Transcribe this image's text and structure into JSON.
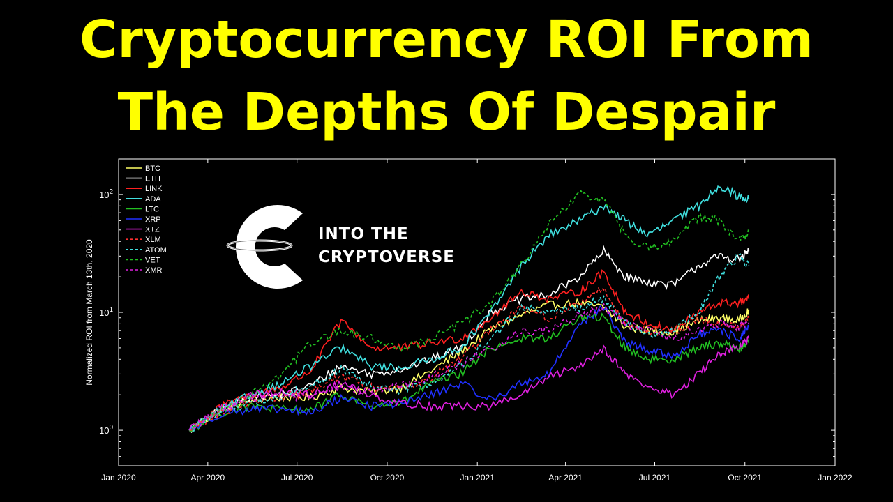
{
  "title": {
    "line1": "Cryptocurrency ROI From",
    "line2": "The Depths Of Despair"
  },
  "logo": {
    "icon": "cryptoverse-logo-icon",
    "line1": "INTO THE",
    "line2": "CRYPTOVERSE"
  },
  "colors": {
    "title": "#ffff00",
    "background": "#000000",
    "axis": "#ffffff"
  },
  "chart_data": {
    "type": "line",
    "ylabel": "Normalized ROI from March 13th, 2020",
    "xlabel": "",
    "yscale": "log",
    "ylim": [
      0.5,
      200
    ],
    "xlim": [
      "2020-01-01",
      "2022-01-01"
    ],
    "x_ticks": [
      {
        "date": "2020-01-01",
        "label": "Jan 2020"
      },
      {
        "date": "2020-04-01",
        "label": "Apr 2020"
      },
      {
        "date": "2020-07-01",
        "label": "Jul 2020"
      },
      {
        "date": "2020-10-01",
        "label": "Oct 2020"
      },
      {
        "date": "2021-01-01",
        "label": "Jan 2021"
      },
      {
        "date": "2021-04-01",
        "label": "Apr 2021"
      },
      {
        "date": "2021-07-01",
        "label": "Jul 2021"
      },
      {
        "date": "2021-10-01",
        "label": "Oct 2021"
      },
      {
        "date": "2022-01-01",
        "label": "Jan 2022"
      }
    ],
    "y_ticks": [
      {
        "value": 1,
        "base": "10",
        "exp": "0"
      },
      {
        "value": 10,
        "base": "10",
        "exp": "1"
      },
      {
        "value": 100,
        "base": "10",
        "exp": "2"
      }
    ],
    "grid": false,
    "legend": "top-left",
    "x": [
      "2020-03-13",
      "2020-04-15",
      "2020-05-15",
      "2020-06-15",
      "2020-07-15",
      "2020-08-15",
      "2020-09-15",
      "2020-10-15",
      "2020-11-15",
      "2020-12-15",
      "2021-01-15",
      "2021-02-15",
      "2021-03-15",
      "2021-04-15",
      "2021-05-10",
      "2021-06-01",
      "2021-06-25",
      "2021-07-20",
      "2021-08-15",
      "2021-09-05",
      "2021-09-25",
      "2021-10-05"
    ],
    "series": [
      {
        "name": "BTC",
        "color": "#ffff66",
        "dash": false,
        "values": [
          1.0,
          1.5,
          1.8,
          1.9,
          1.9,
          2.3,
          2.1,
          2.3,
          3.2,
          4.6,
          7.2,
          9.5,
          11.5,
          12.0,
          11.0,
          7.5,
          7.0,
          6.8,
          8.5,
          9.0,
          8.5,
          10.5
        ]
      },
      {
        "name": "ETH",
        "color": "#ffffff",
        "dash": false,
        "values": [
          1.0,
          1.5,
          1.9,
          2.0,
          2.4,
          3.5,
          3.0,
          3.3,
          4.0,
          5.0,
          10.0,
          13.0,
          14.0,
          20.0,
          33.0,
          20.0,
          18.0,
          17.0,
          25.0,
          30.0,
          28.0,
          33.0
        ]
      },
      {
        "name": "LINK",
        "color": "#ff2020",
        "dash": false,
        "values": [
          1.0,
          1.6,
          2.0,
          2.3,
          3.2,
          8.5,
          5.0,
          5.0,
          5.5,
          6.0,
          9.0,
          15.0,
          13.0,
          15.0,
          22.0,
          10.0,
          8.0,
          7.0,
          10.0,
          12.0,
          12.0,
          13.0
        ]
      },
      {
        "name": "ADA",
        "color": "#40e0e0",
        "dash": false,
        "values": [
          1.0,
          1.5,
          2.0,
          2.5,
          3.5,
          5.0,
          3.5,
          3.4,
          4.0,
          5.0,
          10.0,
          25.0,
          45.0,
          60.0,
          80.0,
          60.0,
          45.0,
          60.0,
          80.0,
          120.0,
          95.0,
          92.0
        ]
      },
      {
        "name": "LTC",
        "color": "#22c022",
        "dash": false,
        "values": [
          1.0,
          1.4,
          1.6,
          1.5,
          1.5,
          2.0,
          1.6,
          1.7,
          2.5,
          3.0,
          5.0,
          6.0,
          6.0,
          9.0,
          9.0,
          5.0,
          4.0,
          4.0,
          5.0,
          5.5,
          5.0,
          5.5
        ]
      },
      {
        "name": "XRP",
        "color": "#2030ff",
        "dash": false,
        "values": [
          1.0,
          1.4,
          1.5,
          1.5,
          1.4,
          1.9,
          1.6,
          1.7,
          2.0,
          2.5,
          1.8,
          2.5,
          3.0,
          8.0,
          11.0,
          5.5,
          4.8,
          4.2,
          6.5,
          7.0,
          6.0,
          7.5
        ]
      },
      {
        "name": "XTZ",
        "color": "#e020e0",
        "dash": false,
        "values": [
          1.0,
          1.5,
          2.0,
          2.1,
          2.0,
          2.5,
          2.0,
          1.7,
          1.6,
          1.6,
          1.6,
          2.0,
          2.8,
          3.5,
          5.0,
          3.0,
          2.3,
          2.0,
          3.0,
          4.5,
          5.0,
          6.0
        ]
      },
      {
        "name": "XLM",
        "color": "#ff3030",
        "dash": true,
        "values": [
          1.0,
          1.4,
          1.8,
          1.9,
          2.1,
          2.9,
          2.3,
          2.3,
          2.8,
          4.0,
          7.0,
          11.0,
          9.0,
          12.0,
          16.0,
          8.0,
          7.0,
          6.5,
          9.0,
          8.0,
          7.5,
          9.0
        ]
      },
      {
        "name": "ATOM",
        "color": "#40e0e0",
        "dash": true,
        "values": [
          1.0,
          1.5,
          1.7,
          1.9,
          2.4,
          3.3,
          2.3,
          2.2,
          2.5,
          3.5,
          6.0,
          11.0,
          10.0,
          11.0,
          13.0,
          8.0,
          6.5,
          7.0,
          10.0,
          20.0,
          30.0,
          25.0
        ]
      },
      {
        "name": "VET",
        "color": "#22c022",
        "dash": true,
        "values": [
          1.0,
          1.5,
          2.0,
          3.0,
          5.5,
          7.0,
          6.0,
          5.0,
          6.0,
          8.0,
          12.0,
          25.0,
          55.0,
          100.0,
          90.0,
          45.0,
          35.0,
          40.0,
          65.0,
          60.0,
          40.0,
          48.0
        ]
      },
      {
        "name": "XMR",
        "color": "#e020e0",
        "dash": true,
        "values": [
          1.0,
          1.5,
          1.9,
          2.0,
          1.9,
          2.3,
          2.1,
          2.4,
          2.8,
          3.7,
          4.9,
          7.0,
          7.0,
          9.5,
          11.0,
          8.0,
          7.0,
          6.0,
          7.0,
          8.0,
          7.5,
          8.0
        ]
      }
    ]
  }
}
